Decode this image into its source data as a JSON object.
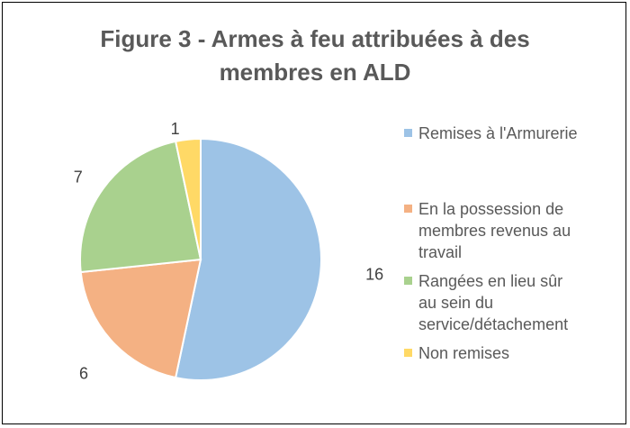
{
  "chart_data": {
    "type": "pie",
    "title": "Figure 3 - Armes à feu attribuées à des membres en ALD",
    "title_lines": [
      "Figure 3 - Armes à feu attribuées à des",
      "membres en ALD"
    ],
    "categories": [
      "Remises à l'Armurerie",
      "En la possession de membres revenus au travail",
      "Rangées en lieu sûr au sein du service/détachement",
      "Non remises"
    ],
    "legend_lines": [
      [
        "Remises à l'Armurerie"
      ],
      [
        "En la possession de",
        "membres revenus au",
        "travail"
      ],
      [
        "Rangées en lieu sûr",
        "au sein du",
        "service/détachement"
      ],
      [
        "Non remises"
      ]
    ],
    "values": [
      16,
      6,
      7,
      1
    ],
    "data_labels": [
      "16",
      "6",
      "7",
      "1"
    ],
    "colors": [
      "#9DC3E6",
      "#F4B183",
      "#A9D18E",
      "#FFD966"
    ],
    "legend_position": "right"
  }
}
